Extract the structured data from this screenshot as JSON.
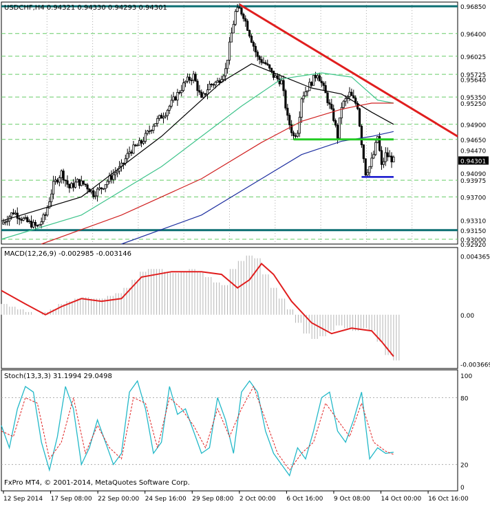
{
  "colors": {
    "background": "#ffffff",
    "frame": "#000000",
    "grid": "#aaaaaa",
    "candle": "#000000",
    "sma_black": "#000000",
    "sma_teal": "#3cc38a",
    "sma_red": "#d02020",
    "sma_blue": "#1e2fa0",
    "trend_red": "#e01e1e",
    "support_green": "#22cc22",
    "support_blue": "#1010cc",
    "level_teal": "#0b6e72",
    "level_green": "#66cc66",
    "macd_hist": "#b4b4b4",
    "macd_signal": "#e01e1e",
    "stoch_main": "#22b8c8",
    "stoch_signal": "#e01e1e",
    "price_label_bg": "#000000"
  },
  "chart_data": [
    {
      "type": "candlestick",
      "title": "USDCHF,H4  0.94321 0.94330 0.94293 0.94301",
      "ylim": [
        0.9292,
        0.9692
      ],
      "y_tick_labels": [
        "0.96850",
        "0.96400",
        "0.96025",
        "0.95725",
        "0.95640",
        "0.95350",
        "0.95250",
        "0.94900",
        "0.94650",
        "0.94470",
        "0.94301",
        "0.94090",
        "0.93975",
        "0.93700",
        "0.93310",
        "0.93150",
        "0.93000",
        "0.92920"
      ],
      "x_tick_labels": [
        "12 Sep 2014",
        "17 Sep 08:00",
        "22 Sep 00:00",
        "24 Sep 16:00",
        "29 Sep 08:00",
        "2 Oct 00:00",
        "6 Oct 16:00",
        "9 Oct 08:00",
        "14 Oct 00:00",
        "16 Oct 16:00"
      ],
      "current_price": 0.94301,
      "horizontal_levels": [
        {
          "value": 0.9685,
          "label": "0.96850",
          "style": "teal"
        },
        {
          "value": 0.964,
          "label": "0.96400",
          "style": "green-dash"
        },
        {
          "value": 0.96025,
          "label": "0.96025",
          "style": "green-dash"
        },
        {
          "value": 0.95725,
          "label": "0.95725",
          "style": "green-dash"
        },
        {
          "value": 0.9535,
          "label": "0.95350",
          "style": "green-dash"
        },
        {
          "value": 0.949,
          "label": "0.94900",
          "style": "green-dash"
        },
        {
          "value": 0.9465,
          "label": "0.94650",
          "style": "green-dash"
        },
        {
          "value": 0.93975,
          "label": "0.93975",
          "style": "green-dash"
        },
        {
          "value": 0.937,
          "label": "0.93700",
          "style": "green-dash"
        },
        {
          "value": 0.9315,
          "label": "0.93150",
          "style": "teal"
        },
        {
          "value": 0.93,
          "label": "0.93000",
          "style": "green-dash"
        }
      ],
      "close_path": [
        [
          0,
          0.9325
        ],
        [
          6,
          0.9345
        ],
        [
          12,
          0.933
        ],
        [
          18,
          0.932
        ],
        [
          22,
          0.934
        ],
        [
          26,
          0.939
        ],
        [
          30,
          0.941
        ],
        [
          34,
          0.9385
        ],
        [
          38,
          0.9395
        ],
        [
          42,
          0.939
        ],
        [
          46,
          0.9375
        ],
        [
          50,
          0.9385
        ],
        [
          54,
          0.94
        ],
        [
          60,
          0.942
        ],
        [
          64,
          0.9445
        ],
        [
          70,
          0.946
        ],
        [
          76,
          0.949
        ],
        [
          82,
          0.951
        ],
        [
          88,
          0.954
        ],
        [
          92,
          0.956
        ],
        [
          96,
          0.957
        ],
        [
          100,
          0.953
        ],
        [
          104,
          0.9555
        ],
        [
          108,
          0.956
        ],
        [
          112,
          0.958
        ],
        [
          115,
          0.964
        ],
        [
          117,
          0.9675
        ],
        [
          119,
          0.968
        ],
        [
          121,
          0.967
        ],
        [
          124,
          0.964
        ],
        [
          128,
          0.96
        ],
        [
          132,
          0.959
        ],
        [
          136,
          0.957
        ],
        [
          140,
          0.956
        ],
        [
          143,
          0.95
        ],
        [
          146,
          0.947
        ],
        [
          148,
          0.948
        ],
        [
          150,
          0.9535
        ],
        [
          154,
          0.9555
        ],
        [
          158,
          0.9575
        ],
        [
          162,
          0.954
        ],
        [
          166,
          0.95
        ],
        [
          168,
          0.947
        ],
        [
          170,
          0.952
        ],
        [
          174,
          0.954
        ],
        [
          178,
          0.952
        ],
        [
          180,
          0.946
        ],
        [
          182,
          0.941
        ],
        [
          184,
          0.942
        ],
        [
          186,
          0.944
        ],
        [
          188,
          0.947
        ],
        [
          190,
          0.942
        ],
        [
          192,
          0.944
        ],
        [
          194,
          0.9435
        ],
        [
          196,
          0.943
        ]
      ],
      "series": [
        {
          "name": "SMA black",
          "values": [
            [
              0,
              0.933
            ],
            [
              40,
              0.937
            ],
            [
              80,
              0.947
            ],
            [
              110,
              0.956
            ],
            [
              125,
              0.959
            ],
            [
              140,
              0.957
            ],
            [
              155,
              0.955
            ],
            [
              170,
              0.954
            ],
            [
              185,
              0.951
            ],
            [
              196,
              0.949
            ]
          ]
        },
        {
          "name": "SMA teal",
          "values": [
            [
              0,
              0.93
            ],
            [
              40,
              0.934
            ],
            [
              80,
              0.942
            ],
            [
              120,
              0.952
            ],
            [
              140,
              0.9565
            ],
            [
              160,
              0.9575
            ],
            [
              175,
              0.9568
            ],
            [
              188,
              0.953
            ],
            [
              196,
              0.9525
            ]
          ]
        },
        {
          "name": "SMA red",
          "values": [
            [
              20,
              0.9292
            ],
            [
              60,
              0.934
            ],
            [
              100,
              0.94
            ],
            [
              130,
              0.946
            ],
            [
              150,
              0.9495
            ],
            [
              170,
              0.9515
            ],
            [
              185,
              0.9525
            ],
            [
              196,
              0.9525
            ]
          ]
        },
        {
          "name": "SMA blue",
          "values": [
            [
              60,
              0.9292
            ],
            [
              100,
              0.934
            ],
            [
              130,
              0.94
            ],
            [
              150,
              0.944
            ],
            [
              170,
              0.9462
            ],
            [
              185,
              0.947
            ],
            [
              196,
              0.9478
            ]
          ]
        }
      ],
      "trend_line": [
        [
          119,
          0.9688
        ],
        [
          228,
          0.947
        ]
      ],
      "support_green": [
        [
          146,
          0.9465
        ],
        [
          196,
          0.9465
        ]
      ],
      "support_blue": [
        [
          180,
          0.9403
        ],
        [
          196,
          0.9403
        ]
      ]
    },
    {
      "type": "macd",
      "title": "MACD(12,26,9) -0.002985 -0.003146",
      "y_tick_labels": [
        "0.004365",
        "0.00",
        "-0.003669"
      ],
      "ylim": [
        -0.004,
        0.005
      ],
      "histogram": [
        0.0008,
        0.0006,
        0.0004,
        0.0002,
        0.0,
        0.0002,
        0.0004,
        0.0008,
        0.001,
        0.0012,
        0.0013,
        0.0012,
        0.0012,
        0.0014,
        0.0016,
        0.002,
        0.0026,
        0.0032,
        0.0034,
        0.0034,
        0.0032,
        0.0031,
        0.0032,
        0.0034,
        0.0032,
        0.0028,
        0.0024,
        0.0022,
        0.0034,
        0.004,
        0.0044,
        0.0042,
        0.003,
        0.002,
        0.0012,
        0.0004,
        -0.0006,
        -0.0014,
        -0.0018,
        -0.0016,
        -0.0012,
        -0.0008,
        -0.001,
        -0.0012,
        -0.001,
        -0.0012,
        -0.002,
        -0.003,
        -0.0034
      ],
      "signal": [
        [
          0,
          0.0018
        ],
        [
          12,
          0.0008
        ],
        [
          22,
          0.0
        ],
        [
          30,
          0.0006
        ],
        [
          40,
          0.0012
        ],
        [
          50,
          0.001
        ],
        [
          60,
          0.0012
        ],
        [
          70,
          0.0028
        ],
        [
          85,
          0.0032
        ],
        [
          100,
          0.0032
        ],
        [
          110,
          0.003
        ],
        [
          118,
          0.002
        ],
        [
          124,
          0.0026
        ],
        [
          130,
          0.0038
        ],
        [
          136,
          0.003
        ],
        [
          145,
          0.001
        ],
        [
          155,
          -0.0006
        ],
        [
          165,
          -0.0014
        ],
        [
          175,
          -0.001
        ],
        [
          185,
          -0.0012
        ],
        [
          190,
          -0.002
        ],
        [
          196,
          -0.0031
        ]
      ]
    },
    {
      "type": "stochastic",
      "title": "Stoch(13,3,3) 31.1994 29.0498",
      "y_tick_labels": [
        "100",
        "80",
        "20",
        "0"
      ],
      "ylim": [
        0,
        100
      ],
      "main": [
        [
          0,
          55
        ],
        [
          4,
          35
        ],
        [
          8,
          70
        ],
        [
          12,
          90
        ],
        [
          16,
          85
        ],
        [
          20,
          40
        ],
        [
          24,
          15
        ],
        [
          28,
          45
        ],
        [
          32,
          90
        ],
        [
          36,
          70
        ],
        [
          40,
          20
        ],
        [
          44,
          35
        ],
        [
          48,
          60
        ],
        [
          52,
          40
        ],
        [
          56,
          20
        ],
        [
          60,
          30
        ],
        [
          64,
          85
        ],
        [
          68,
          95
        ],
        [
          72,
          70
        ],
        [
          76,
          30
        ],
        [
          80,
          40
        ],
        [
          84,
          90
        ],
        [
          88,
          65
        ],
        [
          92,
          70
        ],
        [
          96,
          50
        ],
        [
          100,
          30
        ],
        [
          104,
          35
        ],
        [
          108,
          80
        ],
        [
          112,
          60
        ],
        [
          116,
          30
        ],
        [
          120,
          85
        ],
        [
          124,
          95
        ],
        [
          128,
          85
        ],
        [
          132,
          50
        ],
        [
          136,
          30
        ],
        [
          140,
          20
        ],
        [
          144,
          10
        ],
        [
          148,
          35
        ],
        [
          152,
          25
        ],
        [
          156,
          50
        ],
        [
          160,
          80
        ],
        [
          164,
          85
        ],
        [
          168,
          50
        ],
        [
          172,
          40
        ],
        [
          176,
          60
        ],
        [
          180,
          85
        ],
        [
          184,
          25
        ],
        [
          188,
          35
        ],
        [
          192,
          30
        ],
        [
          196,
          31
        ]
      ],
      "signal": [
        [
          0,
          50
        ],
        [
          6,
          45
        ],
        [
          12,
          80
        ],
        [
          18,
          75
        ],
        [
          24,
          25
        ],
        [
          30,
          40
        ],
        [
          36,
          80
        ],
        [
          42,
          30
        ],
        [
          48,
          55
        ],
        [
          54,
          35
        ],
        [
          60,
          25
        ],
        [
          66,
          80
        ],
        [
          72,
          75
        ],
        [
          78,
          35
        ],
        [
          84,
          80
        ],
        [
          90,
          70
        ],
        [
          96,
          55
        ],
        [
          102,
          35
        ],
        [
          108,
          70
        ],
        [
          114,
          45
        ],
        [
          120,
          70
        ],
        [
          126,
          90
        ],
        [
          132,
          60
        ],
        [
          138,
          30
        ],
        [
          144,
          15
        ],
        [
          150,
          30
        ],
        [
          156,
          40
        ],
        [
          162,
          75
        ],
        [
          168,
          60
        ],
        [
          174,
          45
        ],
        [
          180,
          75
        ],
        [
          186,
          40
        ],
        [
          192,
          32
        ],
        [
          196,
          29
        ]
      ]
    }
  ],
  "footer": {
    "copyright": "FxPro MT4, © 2001-2014, MetaQuotes Software Corp."
  }
}
